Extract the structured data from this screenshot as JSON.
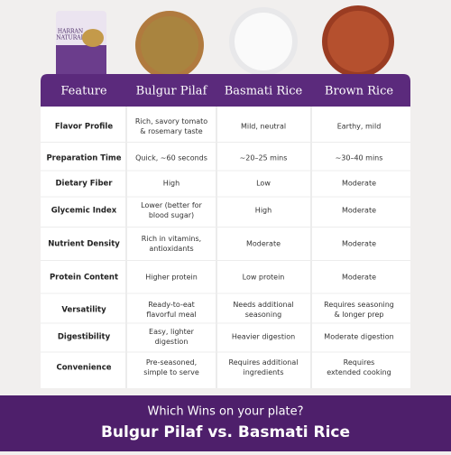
{
  "product": {
    "brand": [
      "HARRAN",
      "NATURAL"
    ]
  },
  "header": {
    "columns": [
      "Feature",
      "Bulgur Pilaf",
      "Basmati Rice",
      "Brown Rice"
    ]
  },
  "rows": [
    [
      "Flavor Profile",
      [
        "Rich, savory tomato",
        "& rosemary taste"
      ],
      [
        "Mild, neutral"
      ],
      [
        "Earthy, mild"
      ]
    ],
    [
      "Preparation Time",
      [
        "Quick, ~60 seconds"
      ],
      [
        "~20–25 mins"
      ],
      [
        "~30–40 mins"
      ]
    ],
    [
      "Dietary Fiber",
      [
        "High"
      ],
      [
        "Low"
      ],
      [
        "Moderate"
      ]
    ],
    [
      "Glycemic Index",
      [
        "Lower (better for",
        "blood sugar)"
      ],
      [
        "High"
      ],
      [
        "Moderate"
      ]
    ],
    [
      "Nutrient Density",
      [
        "Rich in vitamins,",
        "antioxidants"
      ],
      [
        "Moderate"
      ],
      [
        "Moderate"
      ]
    ],
    [
      "Protein Content",
      [
        "Higher protein"
      ],
      [
        "Low protein"
      ],
      [
        "Moderate"
      ]
    ],
    [
      "Versatility",
      [
        "Ready-to-eat",
        "flavorful meal"
      ],
      [
        "Needs additional",
        "seasoning"
      ],
      [
        "Requires seasoning",
        "& longer prep"
      ]
    ],
    [
      "Digestibility",
      [
        "Easy, lighter",
        "digestion"
      ],
      [
        "Heavier digestion"
      ],
      [
        "Moderate digestion"
      ]
    ],
    [
      "Convenience",
      [
        "Pre-seasoned,",
        "simple to serve"
      ],
      [
        "Requires additional",
        "ingredients"
      ],
      [
        "Requires",
        "extended cooking"
      ]
    ]
  ],
  "footer": {
    "question": "Which Wins on your plate?",
    "headline": "Bulgur Pilaf vs. Basmati Rice"
  }
}
